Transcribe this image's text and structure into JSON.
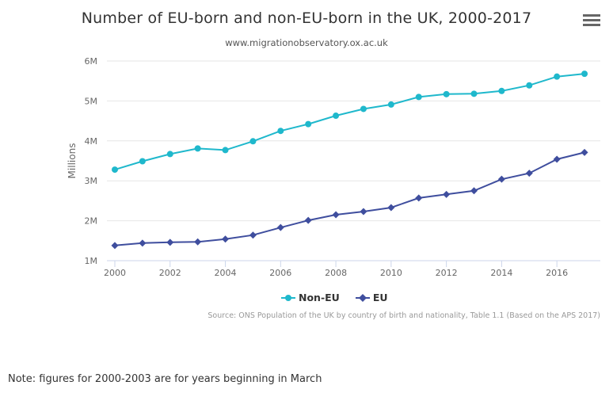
{
  "chart_data": {
    "type": "line",
    "title": "Number of EU-born and non-EU-born in the UK, 2000-2017",
    "subtitle": "www.migrationobservatory.ox.ac.uk",
    "xlabel": "",
    "ylabel": "Millions",
    "x": [
      2000,
      2001,
      2002,
      2003,
      2004,
      2005,
      2006,
      2007,
      2008,
      2009,
      2010,
      2011,
      2012,
      2013,
      2014,
      2015,
      2016,
      2017
    ],
    "xlim": [
      2000,
      2017.4
    ],
    "ylim": [
      1,
      6
    ],
    "x_ticks": [
      "2000",
      "2002",
      "2004",
      "2006",
      "2008",
      "2010",
      "2012",
      "2014",
      "2016"
    ],
    "y_ticks": [
      "1M",
      "2M",
      "3M",
      "4M",
      "5M",
      "6M"
    ],
    "grid": true,
    "legend_position": "bottom-center",
    "series": [
      {
        "name": "Non-EU",
        "color": "#1fb8cc",
        "marker": "circle",
        "values": [
          3.28,
          3.49,
          3.67,
          3.81,
          3.77,
          3.99,
          4.25,
          4.42,
          4.63,
          4.8,
          4.91,
          5.1,
          5.17,
          5.18,
          5.25,
          5.39,
          5.61,
          5.68
        ]
      },
      {
        "name": "EU",
        "color": "#3f4e9e",
        "marker": "diamond",
        "values": [
          1.38,
          1.44,
          1.46,
          1.47,
          1.54,
          1.64,
          1.83,
          2.01,
          2.15,
          2.23,
          2.33,
          2.57,
          2.66,
          2.75,
          3.04,
          3.19,
          3.54,
          3.71
        ]
      }
    ],
    "source": "Source: ONS Population of the UK by country of birth and nationality, Table 1.1 (Based on the APS 2017)"
  },
  "menu": {
    "icon": "hamburger-menu-icon"
  },
  "note": "Note: figures for 2000-2003 are for years beginning in March"
}
